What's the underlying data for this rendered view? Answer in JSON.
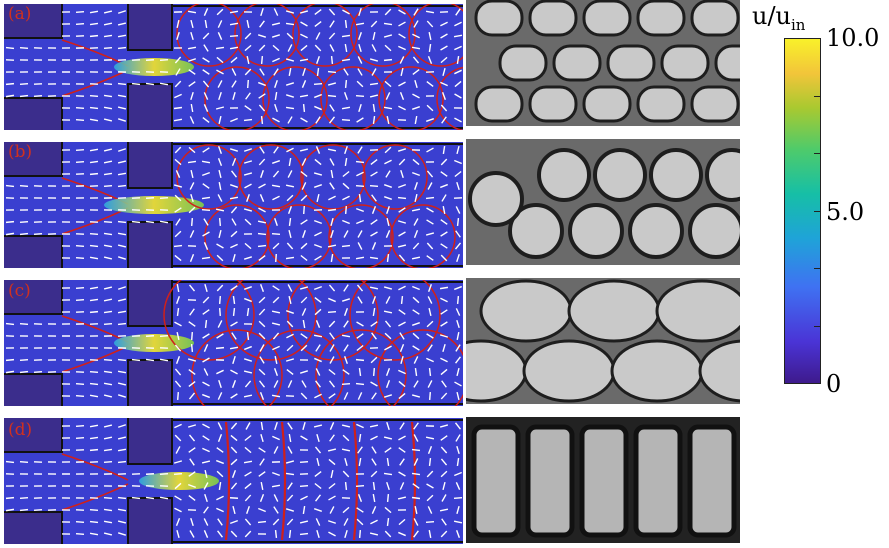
{
  "panels": [
    {
      "label": "(a)",
      "top": 0
    },
    {
      "label": "(b)",
      "top": 139
    },
    {
      "label": "(c)",
      "top": 277
    },
    {
      "label": "(d)",
      "top": 416
    }
  ],
  "colorbar": {
    "title_main": "u/u",
    "title_sub": "in",
    "ticks": [
      {
        "label": "10.0",
        "value": 10
      },
      {
        "label": "5.0",
        "value": 5
      },
      {
        "label": "0",
        "value": 0
      }
    ],
    "min": 0,
    "max": 10,
    "colors": [
      "#3e1a8c",
      "#4a34d6",
      "#3f72f2",
      "#1fa3d8",
      "#16bfa6",
      "#4fcb6a",
      "#a9c930",
      "#f2c53a",
      "#f9f12a"
    ]
  },
  "colors": {
    "field": "#3a3fd0",
    "wall": "#3b2d8c",
    "interface": "#d0201a",
    "arrow": "#ffffff",
    "jet": "#f4e62a"
  }
}
